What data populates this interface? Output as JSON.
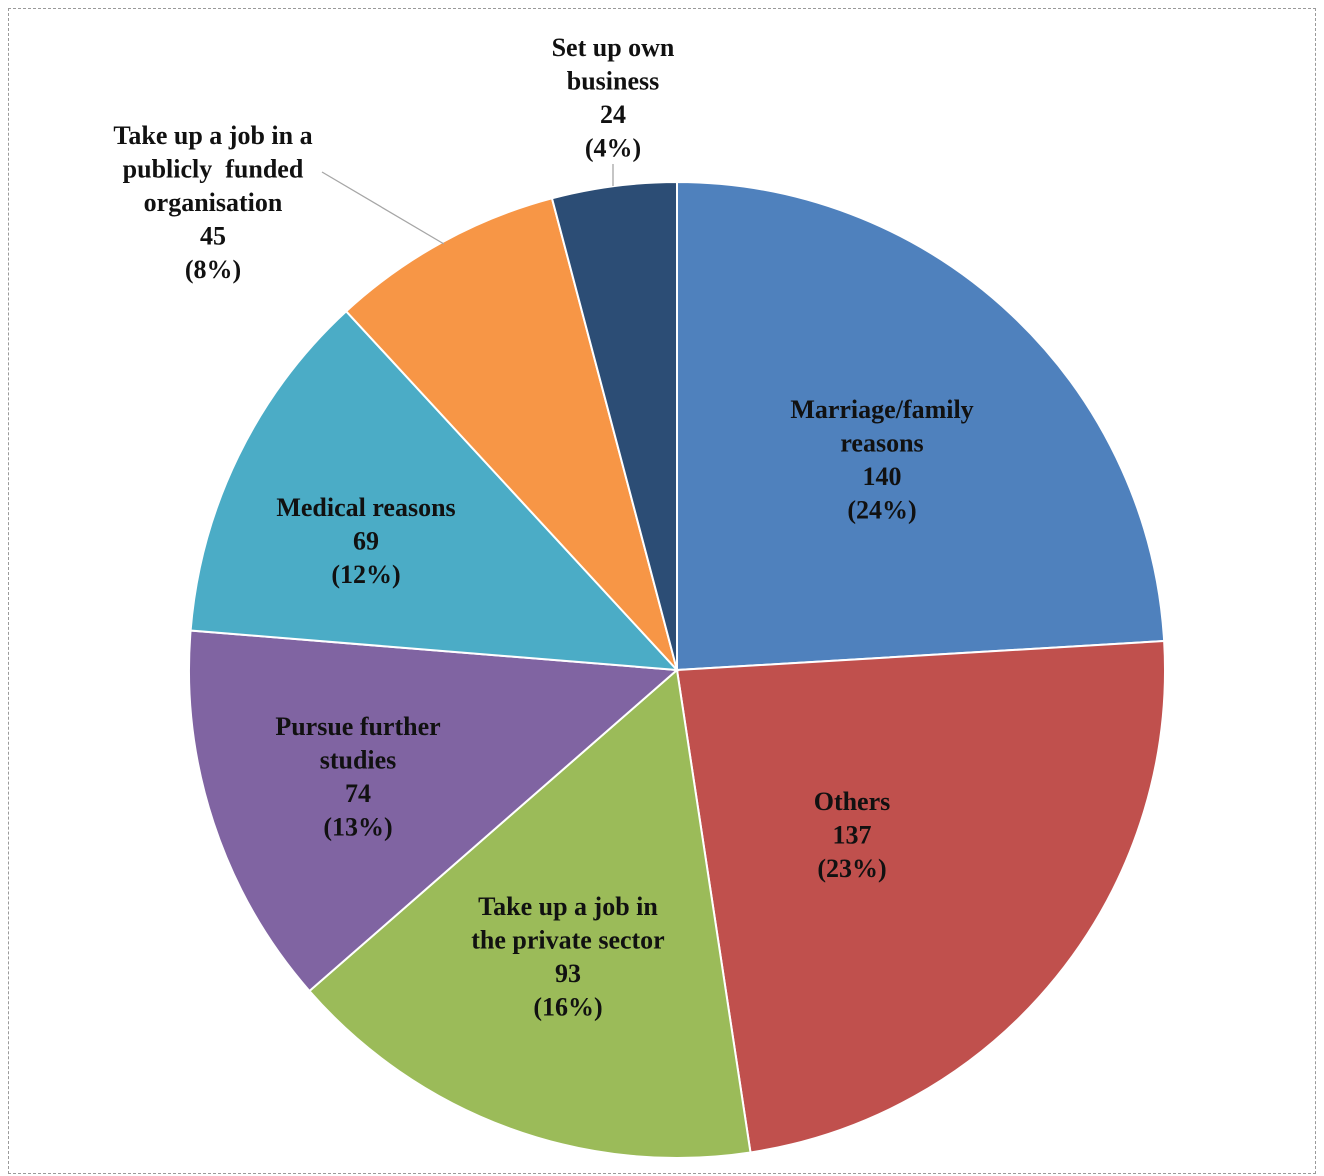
{
  "chart_data": {
    "type": "pie",
    "slices": [
      {
        "label_lines": [
          "Marriage/family",
          "reasons"
        ],
        "value": 140,
        "pct": "(24%)",
        "color": "#4f81bd"
      },
      {
        "label_lines": [
          "Others"
        ],
        "value": 137,
        "pct": "(23%)",
        "color": "#c0504d"
      },
      {
        "label_lines": [
          "Take up a job in",
          "the private sector"
        ],
        "value": 93,
        "pct": "(16%)",
        "color": "#9bbb59"
      },
      {
        "label_lines": [
          "Pursue further",
          "studies"
        ],
        "value": 74,
        "pct": "(13%)",
        "color": "#8064a2"
      },
      {
        "label_lines": [
          "Medical reasons"
        ],
        "value": 69,
        "pct": "(12%)",
        "color": "#4bacc6"
      },
      {
        "label_lines": [
          "Take up a job in a",
          "publicly  funded",
          "organisation"
        ],
        "value": 45,
        "pct": "(8%)",
        "color": "#f79646"
      },
      {
        "label_lines": [
          "Set up own",
          "business"
        ],
        "value": 24,
        "pct": "(4%)",
        "color": "#2c4d75"
      }
    ],
    "start_angle": "12 o'clock",
    "direction": "clockwise",
    "legend": "none",
    "data_labels": "category name, value, percentage"
  }
}
